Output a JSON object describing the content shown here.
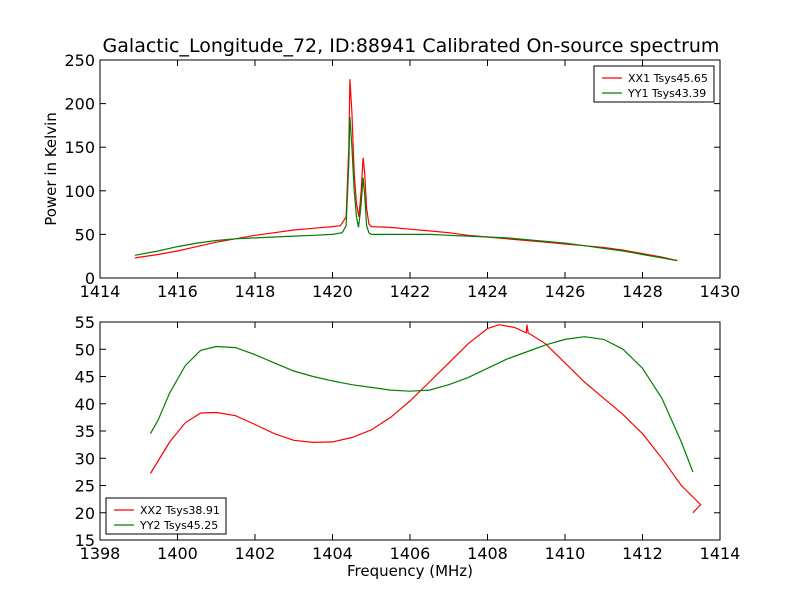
{
  "chart_data": [
    {
      "type": "line",
      "title": "Galactic_Longitude_72, ID:88941 Calibrated On-source spectrum",
      "xlabel": "",
      "ylabel": "Power in Kelvin",
      "xlim": [
        1414,
        1430
      ],
      "ylim": [
        0,
        250
      ],
      "xticks": [
        1414,
        1416,
        1418,
        1420,
        1422,
        1424,
        1426,
        1428,
        1430
      ],
      "yticks": [
        0,
        50,
        100,
        150,
        200,
        250
      ],
      "grid": false,
      "legend_position": "top-right",
      "series": [
        {
          "name": "XX1 Tsys45.65",
          "color": "#ff0000",
          "points": [
            [
              1414.9,
              23
            ],
            [
              1415.5,
              27
            ],
            [
              1416.0,
              31
            ],
            [
              1416.5,
              36
            ],
            [
              1417.0,
              41
            ],
            [
              1417.5,
              45
            ],
            [
              1418.0,
              49
            ],
            [
              1418.5,
              52
            ],
            [
              1419.0,
              55
            ],
            [
              1419.5,
              57
            ],
            [
              1420.0,
              59
            ],
            [
              1420.2,
              60
            ],
            [
              1420.35,
              70
            ],
            [
              1420.42,
              150
            ],
            [
              1420.45,
              228
            ],
            [
              1420.5,
              190
            ],
            [
              1420.56,
              120
            ],
            [
              1420.62,
              85
            ],
            [
              1420.68,
              70
            ],
            [
              1420.74,
              100
            ],
            [
              1420.79,
              138
            ],
            [
              1420.83,
              120
            ],
            [
              1420.88,
              80
            ],
            [
              1420.94,
              62
            ],
            [
              1421.0,
              59
            ],
            [
              1421.5,
              58
            ],
            [
              1422.0,
              56
            ],
            [
              1422.5,
              54
            ],
            [
              1423.0,
              52
            ],
            [
              1423.5,
              49
            ],
            [
              1424.0,
              47
            ],
            [
              1424.5,
              45
            ],
            [
              1425.0,
              43
            ],
            [
              1425.5,
              41
            ],
            [
              1426.0,
              39
            ],
            [
              1426.5,
              37
            ],
            [
              1427.0,
              35
            ],
            [
              1427.5,
              32
            ],
            [
              1428.0,
              28
            ],
            [
              1428.5,
              24
            ],
            [
              1428.9,
              20
            ]
          ]
        },
        {
          "name": "YY1 Tsys43.39",
          "color": "#008000",
          "points": [
            [
              1414.9,
              26
            ],
            [
              1415.5,
              31
            ],
            [
              1416.0,
              36
            ],
            [
              1416.5,
              40
            ],
            [
              1417.0,
              43
            ],
            [
              1417.5,
              45
            ],
            [
              1418.0,
              46
            ],
            [
              1418.5,
              47
            ],
            [
              1419.0,
              48
            ],
            [
              1419.5,
              49
            ],
            [
              1420.0,
              50
            ],
            [
              1420.25,
              52
            ],
            [
              1420.35,
              60
            ],
            [
              1420.42,
              130
            ],
            [
              1420.45,
              185
            ],
            [
              1420.5,
              150
            ],
            [
              1420.56,
              100
            ],
            [
              1420.62,
              70
            ],
            [
              1420.67,
              58
            ],
            [
              1420.73,
              80
            ],
            [
              1420.79,
              115
            ],
            [
              1420.83,
              95
            ],
            [
              1420.88,
              60
            ],
            [
              1420.94,
              52
            ],
            [
              1421.0,
              50
            ],
            [
              1421.5,
              50
            ],
            [
              1422.0,
              50
            ],
            [
              1422.5,
              50
            ],
            [
              1423.0,
              49
            ],
            [
              1423.5,
              48
            ],
            [
              1424.0,
              47
            ],
            [
              1424.5,
              46
            ],
            [
              1425.0,
              44
            ],
            [
              1425.5,
              42
            ],
            [
              1426.0,
              40
            ],
            [
              1426.5,
              37
            ],
            [
              1427.0,
              34
            ],
            [
              1427.5,
              31
            ],
            [
              1428.0,
              27
            ],
            [
              1428.5,
              23
            ],
            [
              1428.9,
              20
            ]
          ]
        }
      ]
    },
    {
      "type": "line",
      "title": "",
      "xlabel": "Frequency (MHz)",
      "ylabel": "",
      "xlim": [
        1398,
        1414
      ],
      "ylim": [
        15,
        55
      ],
      "xticks": [
        1398,
        1400,
        1402,
        1404,
        1406,
        1408,
        1410,
        1412,
        1414
      ],
      "yticks": [
        15,
        20,
        25,
        30,
        35,
        40,
        45,
        50,
        55
      ],
      "grid": false,
      "legend_position": "bottom-left",
      "series": [
        {
          "name": "XX2 Tsys38.91",
          "color": "#ff0000",
          "points": [
            [
              1399.3,
              27.2
            ],
            [
              1399.5,
              29.5
            ],
            [
              1399.8,
              33
            ],
            [
              1400.2,
              36.5
            ],
            [
              1400.6,
              38.3
            ],
            [
              1401.0,
              38.4
            ],
            [
              1401.5,
              37.8
            ],
            [
              1402.0,
              36.2
            ],
            [
              1402.5,
              34.5
            ],
            [
              1403.0,
              33.3
            ],
            [
              1403.5,
              32.9
            ],
            [
              1404.0,
              33.0
            ],
            [
              1404.5,
              33.8
            ],
            [
              1405.0,
              35.2
            ],
            [
              1405.5,
              37.5
            ],
            [
              1406.0,
              40.5
            ],
            [
              1406.5,
              44.0
            ],
            [
              1407.0,
              47.5
            ],
            [
              1407.5,
              51.0
            ],
            [
              1408.0,
              53.8
            ],
            [
              1408.3,
              54.5
            ],
            [
              1408.7,
              54.0
            ],
            [
              1409.0,
              53.0
            ],
            [
              1409.02,
              54.5
            ],
            [
              1409.05,
              53.0
            ],
            [
              1409.5,
              51.0
            ],
            [
              1410.0,
              47.5
            ],
            [
              1410.5,
              44.0
            ],
            [
              1411.0,
              41.0
            ],
            [
              1411.5,
              38.0
            ],
            [
              1412.0,
              34.5
            ],
            [
              1412.5,
              30.0
            ],
            [
              1413.0,
              25.0
            ],
            [
              1413.5,
              21.5
            ],
            [
              1413.3,
              20.0
            ]
          ]
        },
        {
          "name": "YY2 Tsys45.25",
          "color": "#008000",
          "points": [
            [
              1399.3,
              34.5
            ],
            [
              1399.5,
              37
            ],
            [
              1399.8,
              42
            ],
            [
              1400.2,
              47
            ],
            [
              1400.6,
              49.8
            ],
            [
              1401.0,
              50.5
            ],
            [
              1401.5,
              50.3
            ],
            [
              1402.0,
              49.0
            ],
            [
              1402.5,
              47.5
            ],
            [
              1403.0,
              46.0
            ],
            [
              1403.5,
              45.0
            ],
            [
              1404.0,
              44.2
            ],
            [
              1404.5,
              43.5
            ],
            [
              1405.0,
              43.0
            ],
            [
              1405.5,
              42.5
            ],
            [
              1406.0,
              42.3
            ],
            [
              1406.5,
              42.5
            ],
            [
              1407.0,
              43.5
            ],
            [
              1407.5,
              44.8
            ],
            [
              1408.0,
              46.5
            ],
            [
              1408.5,
              48.2
            ],
            [
              1409.0,
              49.5
            ],
            [
              1409.5,
              50.8
            ],
            [
              1410.0,
              51.8
            ],
            [
              1410.5,
              52.3
            ],
            [
              1411.0,
              51.8
            ],
            [
              1411.5,
              50.0
            ],
            [
              1412.0,
              46.5
            ],
            [
              1412.5,
              41.0
            ],
            [
              1413.0,
              33.0
            ],
            [
              1413.3,
              27.5
            ]
          ]
        }
      ]
    }
  ]
}
